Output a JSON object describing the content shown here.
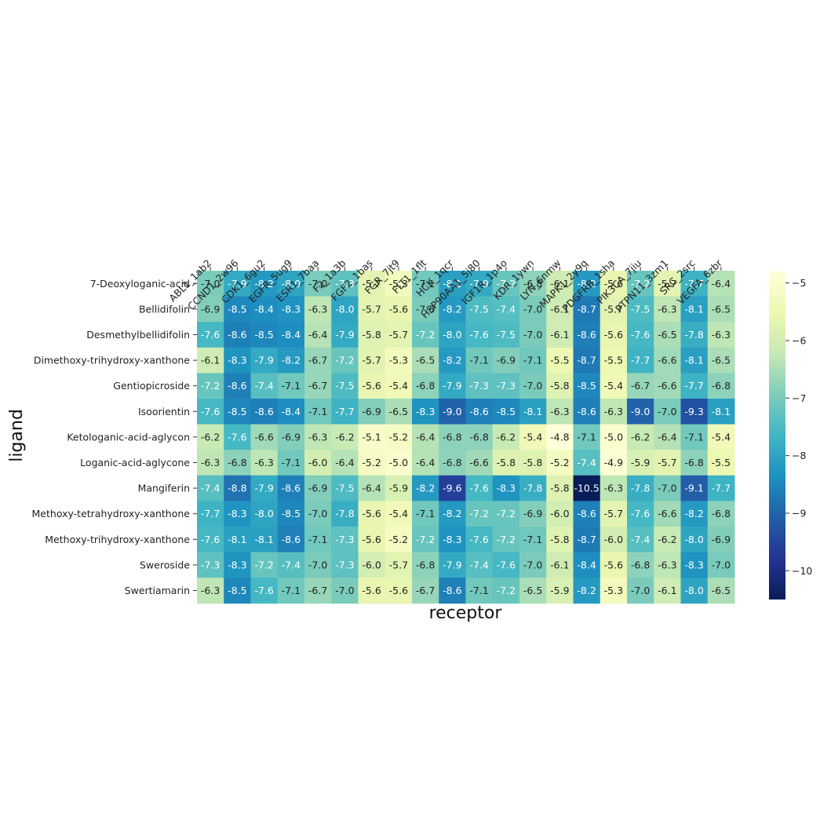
{
  "chart_data": {
    "type": "heatmap",
    "xlabel": "receptor",
    "ylabel": "ligand",
    "columns": [
      "ABL1_1ab2",
      "CCND1_2w96",
      "CDK1_6gu2",
      "EGFR_5ug9",
      "ESR1_7baa",
      "F2_1a3b",
      "FGF2_1bas",
      "FGR_7jt9",
      "FLT1_1flt",
      "HCK_1qcr",
      "HSP90AA1_5j80",
      "IGF1R_1p4o",
      "KDR_1ywn",
      "LYN_6nmw",
      "MAPK1_2y9q",
      "PDGFRB_1sha",
      "PIK3CA_7jiu",
      "PTPN11_3zm1",
      "SRC_2src",
      "VEGFA_6zbr"
    ],
    "rows": [
      "7-Deoxyloganic-acid",
      "Bellidifolin",
      "Desmethylbellidifolin",
      "Dimethoxy-trihydroxy-xanthone",
      "Gentiopicroside",
      "Isoorientin",
      "Ketologanic-acid-aglycon",
      "Loganic-acid-aglycone",
      "Mangiferin",
      "Methoxy-tetrahydroxy-xanthone",
      "Methoxy-trihydroxy-xanthone",
      "Sweroside",
      "Swertiamarin"
    ],
    "values": [
      [
        -7.0,
        -7.9,
        -8.2,
        -8.0,
        -7.0,
        -7.3,
        -5.7,
        -5.3,
        -7.1,
        -8.1,
        -7.9,
        -7.2,
        -6.8,
        -6.1,
        -8.2,
        -5.6,
        -7.2,
        -5.7,
        -7.7,
        -6.4
      ],
      [
        -6.9,
        -8.5,
        -8.4,
        -8.3,
        -6.3,
        -8.0,
        -5.7,
        -5.6,
        -7.0,
        -8.2,
        -7.5,
        -7.4,
        -7.0,
        -6.1,
        -8.7,
        -5.7,
        -7.5,
        -6.3,
        -8.1,
        -6.5
      ],
      [
        -7.6,
        -8.6,
        -8.5,
        -8.4,
        -6.4,
        -7.9,
        -5.8,
        -5.7,
        -7.2,
        -8.0,
        -7.6,
        -7.5,
        -7.0,
        -6.1,
        -8.6,
        -5.6,
        -7.6,
        -6.5,
        -7.8,
        -6.3
      ],
      [
        -6.1,
        -8.3,
        -7.9,
        -8.2,
        -6.7,
        -7.2,
        -5.7,
        -5.3,
        -6.5,
        -8.2,
        -7.1,
        -6.9,
        -7.1,
        -5.5,
        -8.7,
        -5.5,
        -7.7,
        -6.6,
        -8.1,
        -6.5
      ],
      [
        -7.2,
        -8.6,
        -7.4,
        -7.1,
        -6.7,
        -7.5,
        -5.6,
        -5.4,
        -6.8,
        -7.9,
        -7.3,
        -7.3,
        -7.0,
        -5.8,
        -8.5,
        -5.4,
        -6.7,
        -6.6,
        -7.7,
        -6.8
      ],
      [
        -7.6,
        -8.5,
        -8.6,
        -8.4,
        -7.1,
        -7.7,
        -6.9,
        -6.5,
        -8.3,
        -9.0,
        -8.6,
        -8.5,
        -8.1,
        -6.3,
        -8.6,
        -6.3,
        -9.0,
        -7.0,
        -9.3,
        -8.1
      ],
      [
        -6.2,
        -7.6,
        -6.6,
        -6.9,
        -6.3,
        -6.2,
        -5.1,
        -5.2,
        -6.4,
        -6.8,
        -6.8,
        -6.2,
        -5.4,
        -4.8,
        -7.1,
        -5.0,
        -6.2,
        -6.4,
        -7.1,
        -5.4
      ],
      [
        -6.3,
        -6.8,
        -6.3,
        -7.1,
        -6.0,
        -6.4,
        -5.2,
        -5.0,
        -6.4,
        -6.8,
        -6.6,
        -5.8,
        -5.8,
        -5.2,
        -7.4,
        -4.9,
        -5.9,
        -5.7,
        -6.8,
        -5.5
      ],
      [
        -7.4,
        -8.8,
        -7.9,
        -8.6,
        -6.9,
        -7.5,
        -6.4,
        -5.9,
        -8.2,
        -9.6,
        -7.6,
        -8.3,
        -7.8,
        -5.8,
        -10.5,
        -6.3,
        -7.8,
        -7.0,
        -9.1,
        -7.7
      ],
      [
        -7.7,
        -8.3,
        -8.0,
        -8.5,
        -7.0,
        -7.8,
        -5.6,
        -5.4,
        -7.1,
        -8.2,
        -7.2,
        -7.2,
        -6.9,
        -6.0,
        -8.6,
        -5.7,
        -7.6,
        -6.6,
        -8.2,
        -6.8
      ],
      [
        -7.6,
        -8.1,
        -8.1,
        -8.6,
        -7.1,
        -7.3,
        -5.6,
        -5.2,
        -7.2,
        -8.3,
        -7.6,
        -7.2,
        -7.1,
        -5.8,
        -8.7,
        -6.0,
        -7.4,
        -6.2,
        -8.0,
        -6.9
      ],
      [
        -7.3,
        -8.3,
        -7.2,
        -7.4,
        -7.0,
        -7.3,
        -6.0,
        -5.7,
        -6.8,
        -7.9,
        -7.4,
        -7.6,
        -7.0,
        -6.1,
        -8.4,
        -5.6,
        -6.8,
        -6.3,
        -8.3,
        -7.0
      ],
      [
        -6.3,
        -8.5,
        -7.6,
        -7.1,
        -6.7,
        -7.0,
        -5.6,
        -5.6,
        -6.7,
        -8.6,
        -7.1,
        -7.2,
        -6.5,
        -5.9,
        -8.2,
        -5.3,
        -7.0,
        -6.1,
        -8.0,
        -6.5
      ]
    ],
    "vmin": -10.5,
    "vmax": -4.8,
    "colormap": "YlGnBu",
    "colorbar_ticks": [
      -5,
      -6,
      -7,
      -8,
      -9,
      -10
    ],
    "colorbar_tick_labels": [
      "−5",
      "−6",
      "−7",
      "−8",
      "−9",
      "−10"
    ],
    "annotation_format": "one decimal"
  },
  "colors": {
    "colormap_stops": [
      "#ffffd9",
      "#edf8b1",
      "#c7e9b4",
      "#7fcdbb",
      "#41b6c4",
      "#1d91c0",
      "#225ea8",
      "#253494",
      "#081d58"
    ]
  }
}
